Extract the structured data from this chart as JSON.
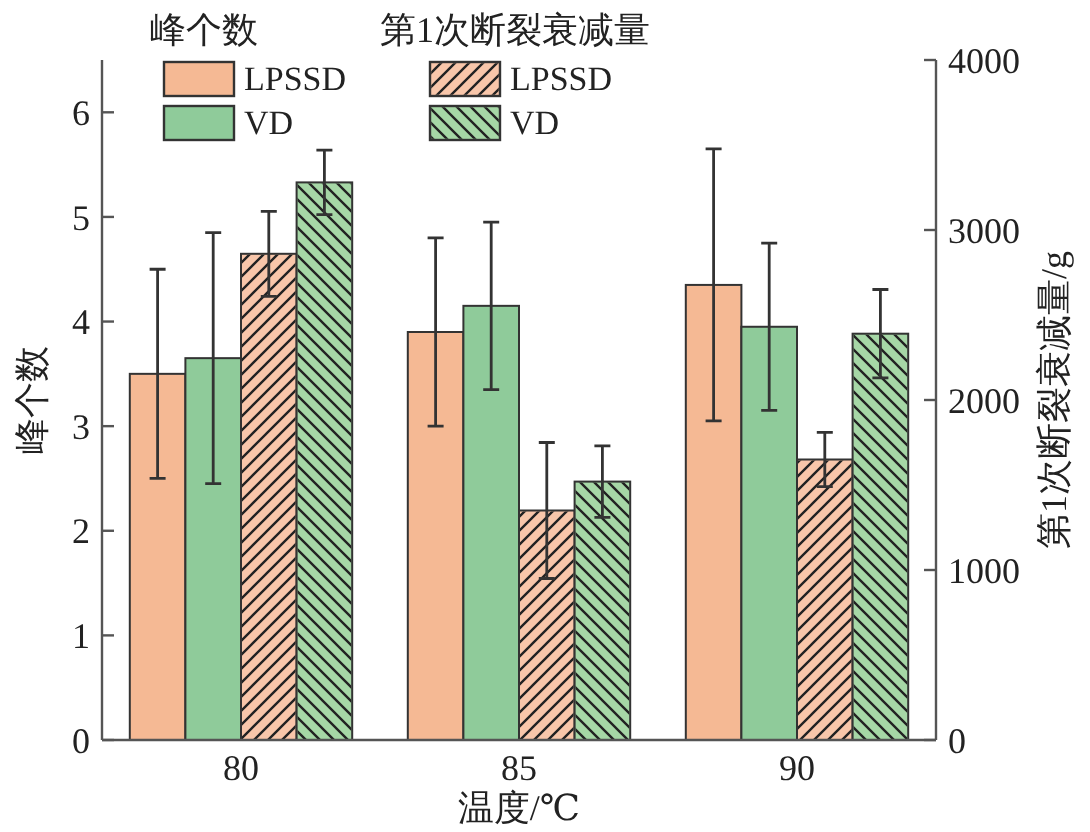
{
  "chart_data": {
    "type": "bar",
    "categories": [
      "80",
      "85",
      "90"
    ],
    "series": [
      {
        "name": "LPSSD",
        "color": "#f5b994",
        "values": [
          3.5,
          3.9,
          4.35
        ],
        "errors": [
          1.0,
          0.9,
          1.3
        ]
      },
      {
        "name": "VD",
        "color": "#8fcb9a",
        "values": [
          3.65,
          4.15,
          3.95
        ],
        "errors": [
          1.2,
          0.8,
          0.8
        ]
      },
      {
        "name": "LPSSD",
        "color": "#f8c6aa",
        "values": [
          2860,
          1350,
          1650
        ],
        "errors": [
          250,
          400,
          160
        ],
        "axis": "y2"
      },
      {
        "name": "VD",
        "color": "#a6d7a6",
        "values": [
          3280,
          1520,
          2390
        ],
        "errors": [
          190,
          210,
          260
        ],
        "axis": "y2"
      }
    ],
    "xlabel": "温度/℃",
    "ylabel": "峰个数",
    "y2label": "第1次断裂衰减量/g",
    "ylim": [
      0,
      6.5
    ],
    "yticks": [
      0,
      1,
      2,
      3,
      4,
      5,
      6
    ],
    "y2lim": [
      0,
      4000
    ],
    "y2ticks": [
      0,
      1000,
      2000,
      3000,
      4000
    ],
    "legend": "top left",
    "annotations": [
      "峰个数",
      "第1次断裂衰减量"
    ]
  }
}
